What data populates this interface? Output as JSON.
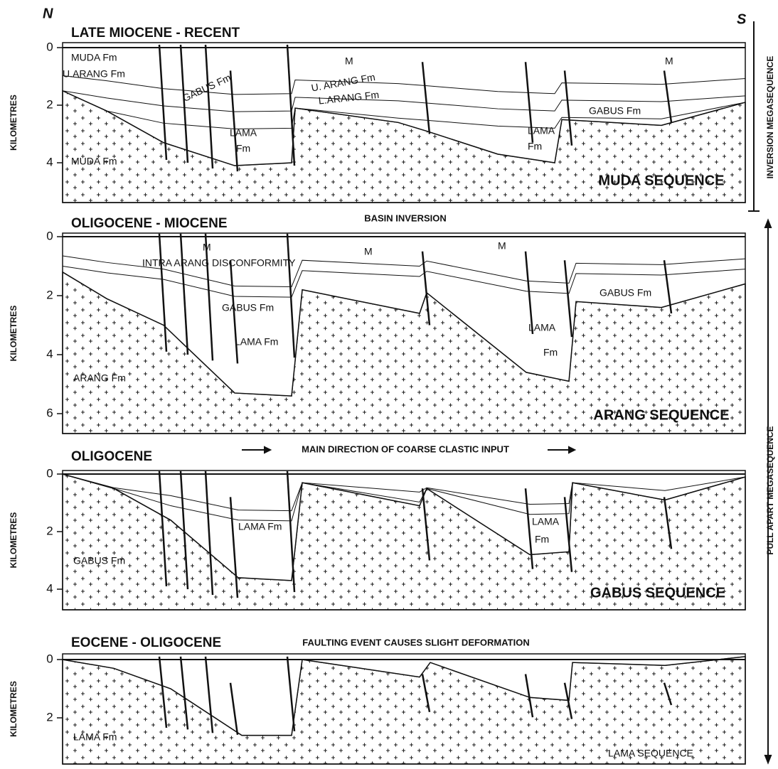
{
  "north": "N",
  "south": "S",
  "right_labels": {
    "inversion": "INVERSION MEGASEQUENCE",
    "pull_apart": "PULL APART MEGASEQUENCE"
  },
  "notes": [
    "BASIN INVERSION",
    "MAIN DIRECTION OF COARSE CLASTIC INPUT"
  ],
  "panels": [
    {
      "title": "LATE MIOCENE - RECENT",
      "axis_label": "KILOMETRES",
      "ticks": [
        0,
        2,
        4
      ],
      "sequence": "MUDA SEQUENCE",
      "labels": [
        "MUDA Fm",
        "M",
        "M",
        "U.ARANG Fm",
        "GABUS Fm",
        "U. ARANG Fm",
        "L.ARANG Fm",
        "GABUS Fm",
        "LAMA",
        "Fm",
        "LAMA",
        "Fm",
        "MUDA Fm"
      ]
    },
    {
      "title": "OLIGOCENE - MIOCENE",
      "axis_label": "KILOMETRES",
      "ticks": [
        0,
        2,
        4,
        6
      ],
      "sequence": "ARANG SEQUENCE",
      "labels": [
        "M",
        "M",
        "M",
        "INTRA ARANG DISCONFORMITY",
        "GABUS Fm",
        "GABUS Fm",
        "LAMA Fm",
        "LAMA",
        "Fm",
        "ARANG Fm"
      ]
    },
    {
      "title": "OLIGOCENE",
      "axis_label": "KILOMETRES",
      "ticks": [
        0,
        2,
        4
      ],
      "sequence": "GABUS SEQUENCE",
      "labels": [
        "LAMA Fm",
        "LAMA",
        "Fm",
        "GABUS Fm"
      ]
    },
    {
      "title": "EOCENE - OLIGOCENE",
      "axis_label": "KILOMETRES",
      "ticks": [
        0,
        2
      ],
      "sequence": "LAMA SEQUENCE",
      "note": "FAULTING EVENT CAUSES SLIGHT DEFORMATION",
      "labels": [
        "LAMA Fm"
      ]
    }
  ]
}
